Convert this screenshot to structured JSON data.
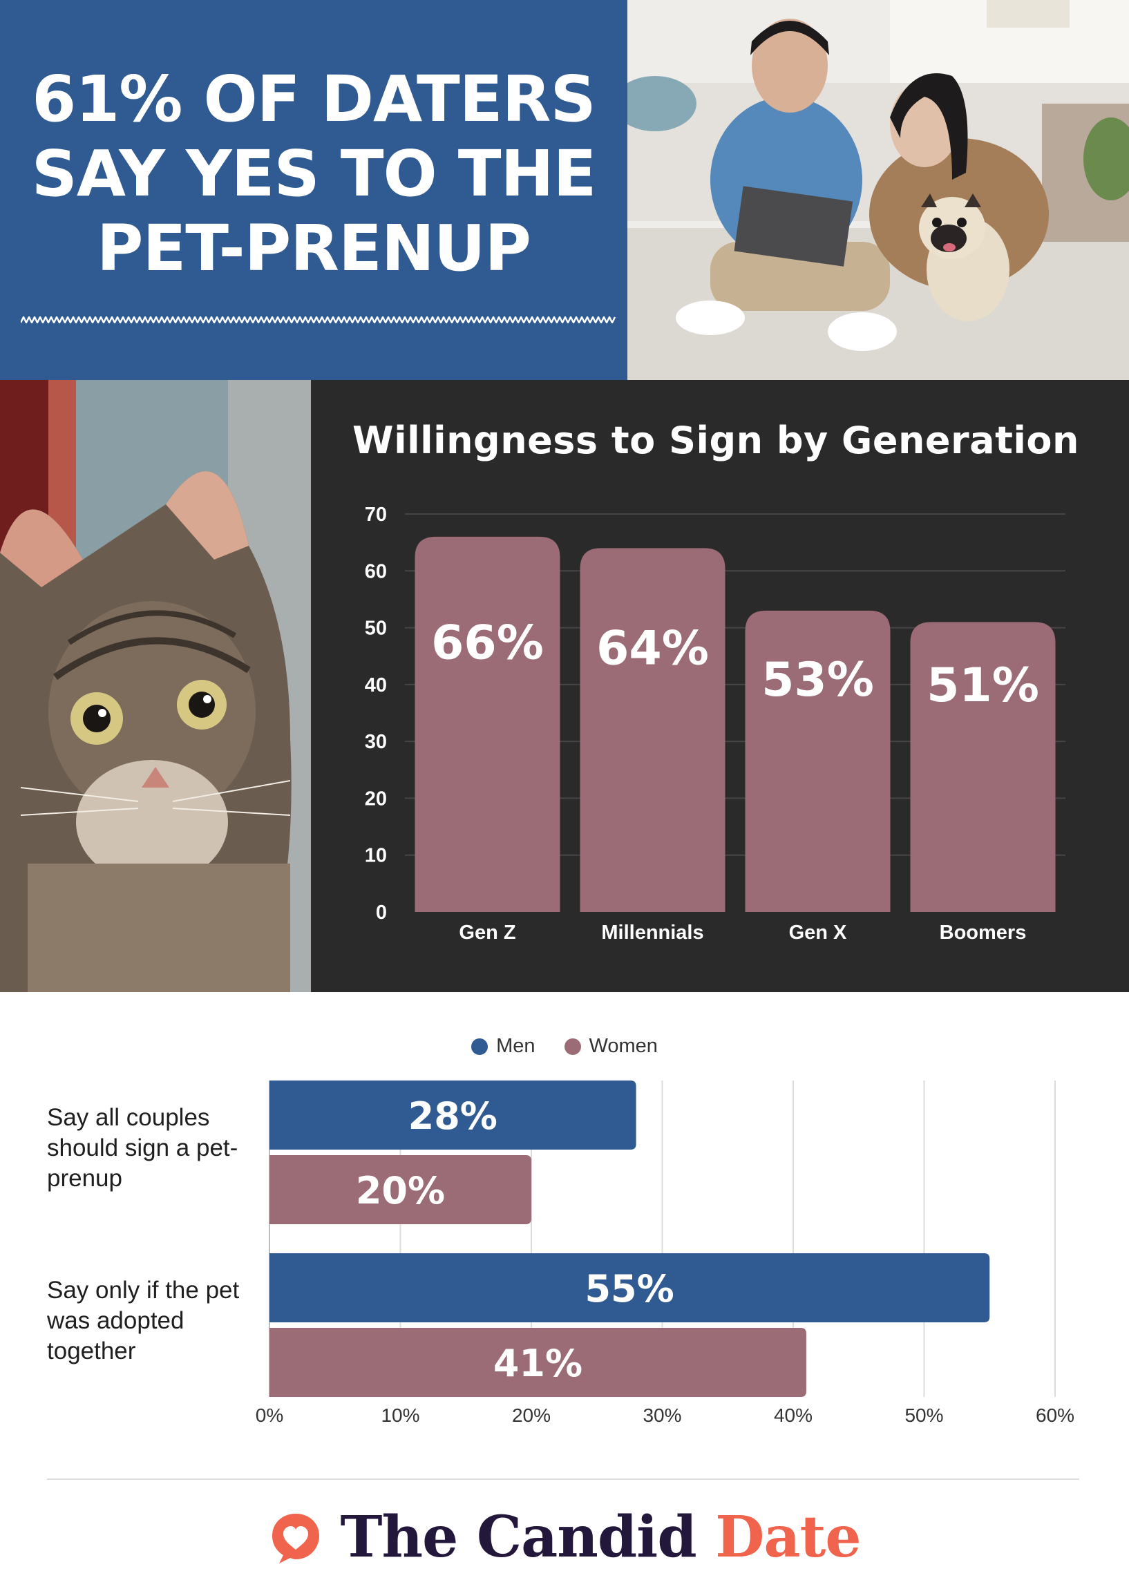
{
  "header": {
    "headline_lines": [
      "61% OF DATERS",
      "SAY YES TO THE",
      "PET-PRENUP"
    ],
    "background_color": "#2f5b92"
  },
  "photos": {
    "top_right": "couple-with-laptop-and-pug-photo",
    "left": "tabby-cat-photo"
  },
  "chart_data": [
    {
      "type": "bar",
      "title": "Willingness to Sign by Generation",
      "categories": [
        "Gen Z",
        "Millennials",
        "Gen X",
        "Boomers"
      ],
      "values": [
        66,
        64,
        53,
        51
      ],
      "value_labels": [
        "66%",
        "64%",
        "53%",
        "51%"
      ],
      "ylim": [
        0,
        70
      ],
      "yticks": [
        0,
        10,
        20,
        30,
        40,
        50,
        60,
        70
      ],
      "grid": true,
      "bar_color": "#9b6c76",
      "background_color": "#2b2a2b"
    },
    {
      "type": "bar",
      "orientation": "horizontal",
      "categories": [
        "Say all couples should sign a pet-prenup",
        "Say only if the pet was adopted together"
      ],
      "series": [
        {
          "name": "Men",
          "color": "#2f5b92",
          "values": [
            28,
            55
          ],
          "value_labels": [
            "28%",
            "55%"
          ]
        },
        {
          "name": "Women",
          "color": "#9b6c76",
          "values": [
            20,
            41
          ],
          "value_labels": [
            "20%",
            "41%"
          ]
        }
      ],
      "xlim": [
        0,
        60
      ],
      "xticks": [
        "0%",
        "10%",
        "20%",
        "30%",
        "40%",
        "50%",
        "60%"
      ],
      "legend": "top-center",
      "grid": true
    }
  ],
  "footer": {
    "brand_main": "The Candid ",
    "brand_accent": "Date",
    "brand_color": "#23183b",
    "accent_color": "#f0634c",
    "logo_icon": "heart-chat-bubble-icon"
  }
}
